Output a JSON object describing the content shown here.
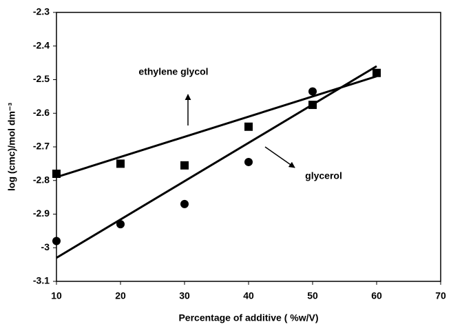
{
  "chart_data": {
    "type": "scatter",
    "x_label": "Percentage of additive ( %w/V)",
    "y_label": "log (cmc)/mol dm⁻³",
    "xlim": [
      10,
      70
    ],
    "xticks": [
      10,
      20,
      30,
      40,
      50,
      60,
      70
    ],
    "ylim": [
      -3.1,
      -2.3
    ],
    "yticks": [
      -2.3,
      -2.4,
      -2.5,
      -2.6,
      -2.7,
      -2.8,
      -2.9,
      -3,
      -3.1
    ],
    "grid": false,
    "series": [
      {
        "name": "ethylene glycol",
        "color": "#000000",
        "marker": "square",
        "x": [
          10,
          20,
          30,
          40,
          50,
          60
        ],
        "values": [
          -2.78,
          -2.75,
          -2.755,
          -2.64,
          -2.575,
          -2.48
        ],
        "trend_x": [
          10,
          60
        ],
        "trend_y": [
          -2.79,
          -2.49
        ]
      },
      {
        "name": "glycerol",
        "color": "#000000",
        "marker": "circle",
        "x": [
          10,
          20,
          30,
          40,
          50
        ],
        "values": [
          -2.98,
          -2.93,
          -2.87,
          -2.745,
          -2.535
        ],
        "trend_x": [
          10,
          60
        ],
        "trend_y": [
          -3.03,
          -2.46
        ]
      }
    ]
  }
}
